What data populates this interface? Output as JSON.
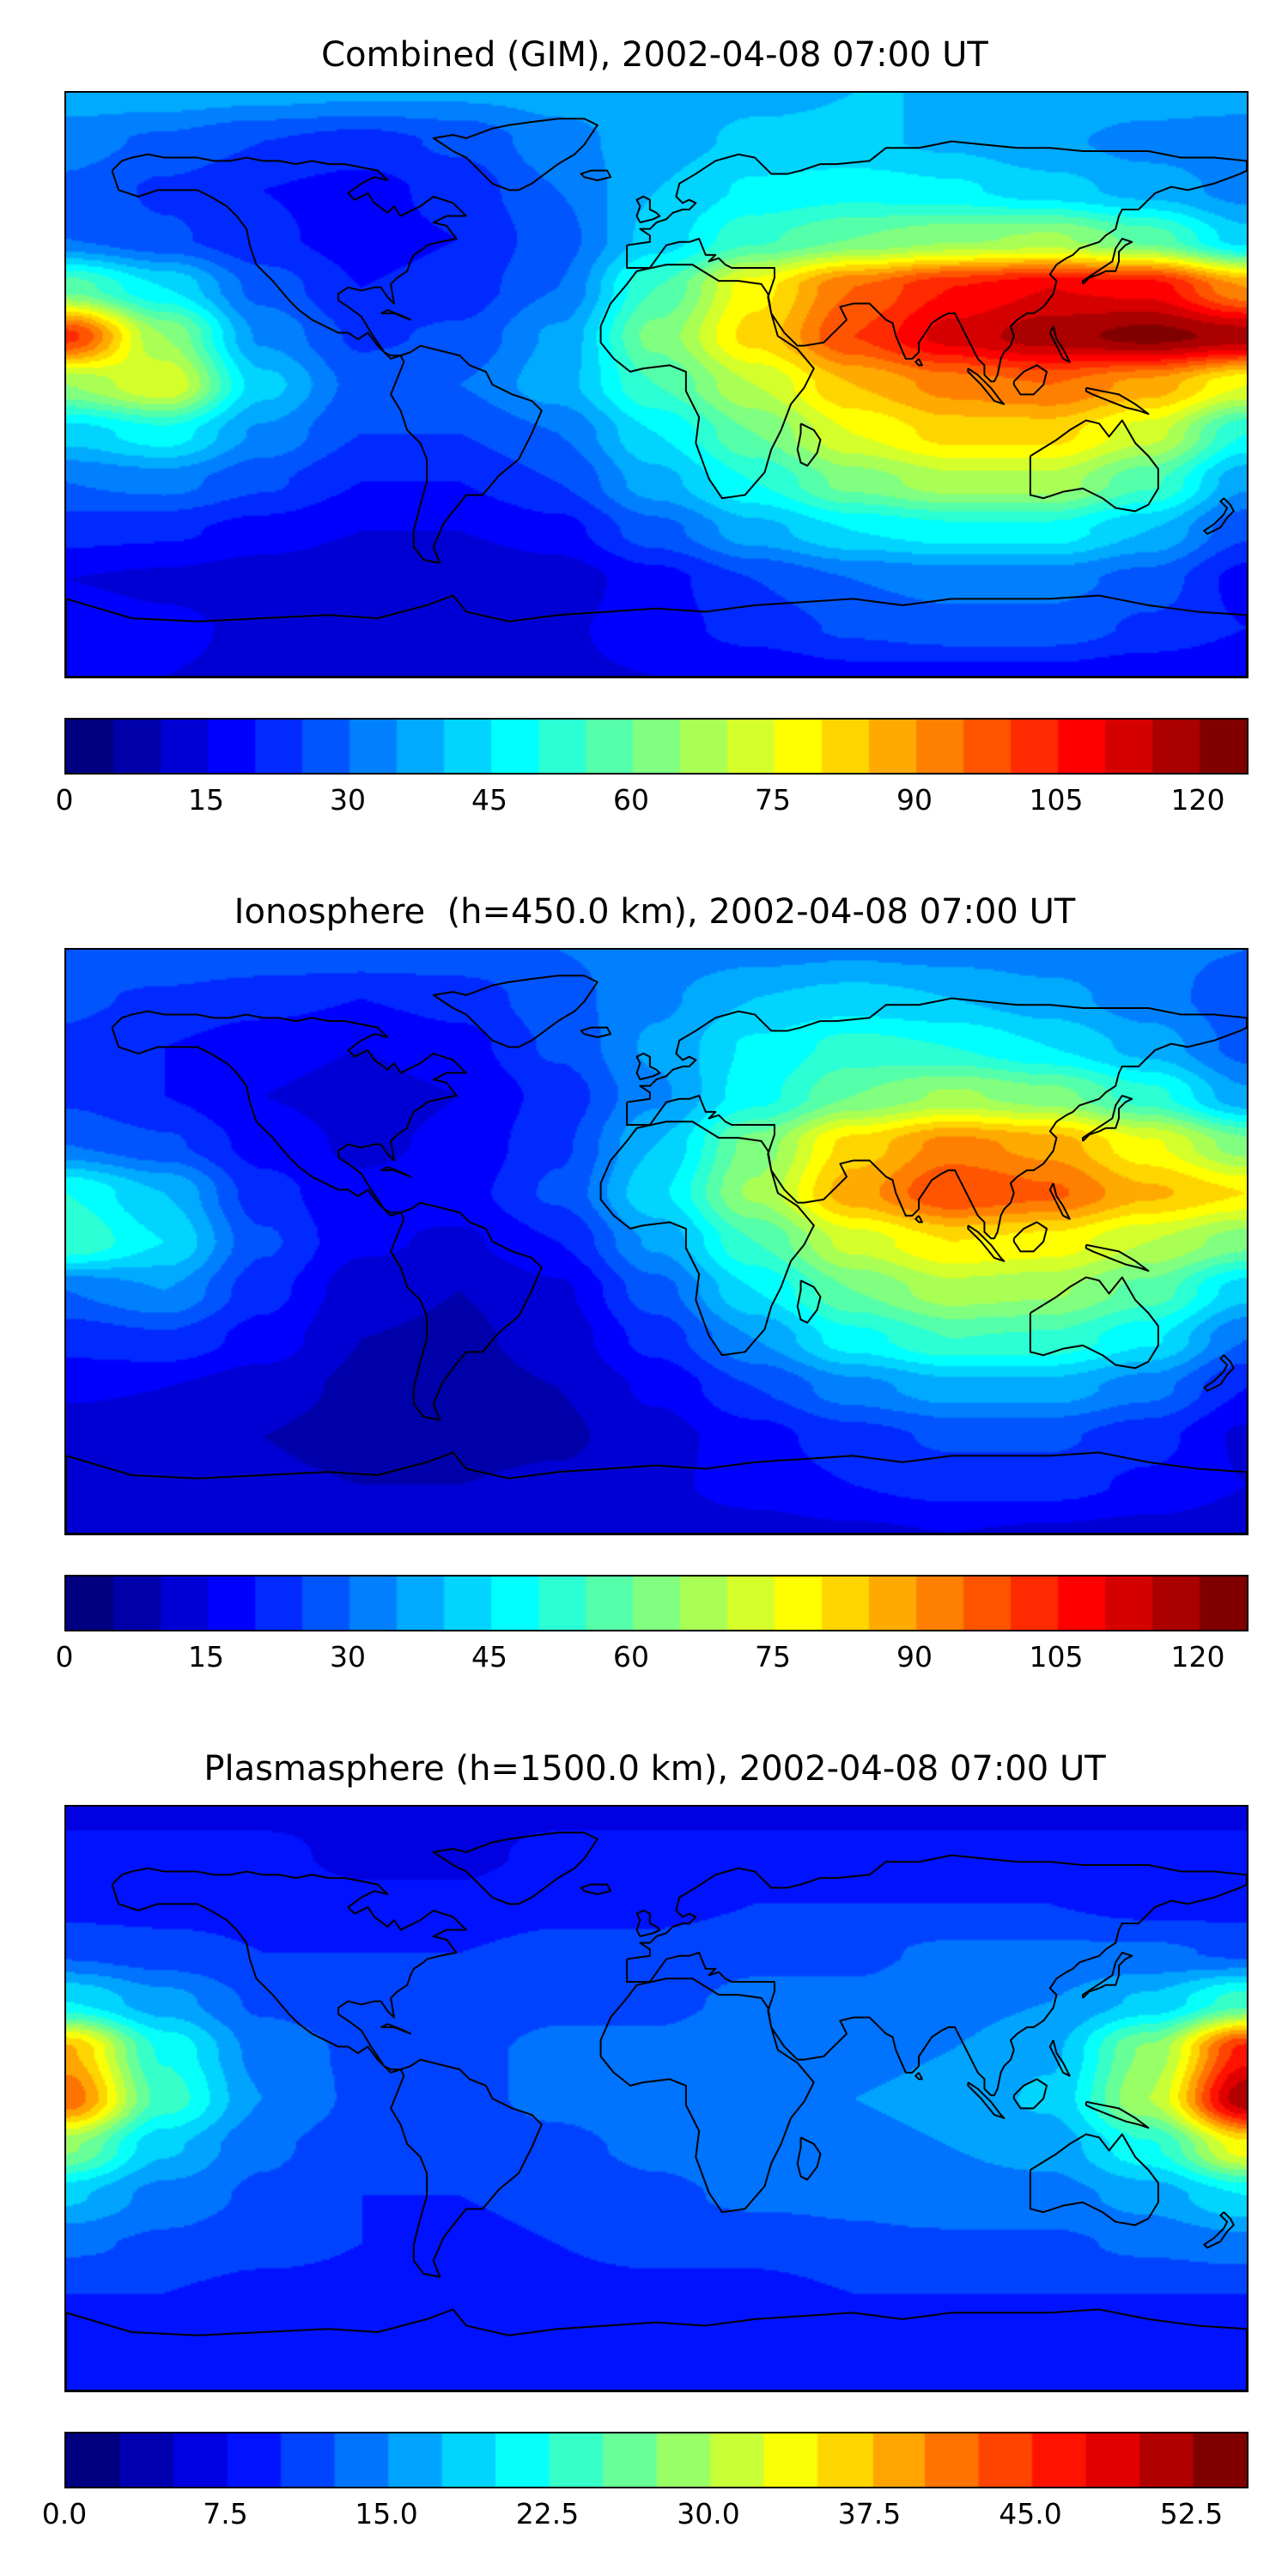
{
  "figure": {
    "background": "#ffffff",
    "text_color": "#000000"
  },
  "chart_data": [
    {
      "type": "heatmap",
      "title": "Combined (GIM), 2002-04-08 07:00 UT",
      "colormap": "jet",
      "projection": "equirectangular",
      "grid": false,
      "legend": "horizontal colorbar below map",
      "vmin": 0,
      "vmax": 125,
      "level_step": 5,
      "colorbar_ticks": [
        "0",
        "15",
        "30",
        "45",
        "60",
        "75",
        "90",
        "105",
        "120"
      ],
      "colorbar_tick_values": [
        0,
        15,
        30,
        45,
        60,
        75,
        90,
        105,
        120
      ],
      "lon": [
        -180,
        -150,
        -120,
        -90,
        -60,
        -30,
        0,
        30,
        60,
        90,
        120,
        150,
        180
      ],
      "lat": [
        90,
        75,
        60,
        45,
        30,
        15,
        0,
        -15,
        -30,
        -45,
        -60,
        -75,
        -90
      ],
      "values": [
        [
          38,
          38,
          37,
          36,
          36,
          37,
          38,
          39,
          40,
          40,
          39,
          38,
          38
        ],
        [
          32,
          29,
          25,
          23,
          26,
          33,
          38,
          41,
          41,
          39,
          36,
          33,
          31
        ],
        [
          29,
          24,
          20,
          18,
          22,
          30,
          40,
          46,
          48,
          46,
          42,
          38,
          33
        ],
        [
          30,
          26,
          21,
          18,
          20,
          28,
          42,
          54,
          60,
          64,
          66,
          58,
          42
        ],
        [
          58,
          45,
          28,
          20,
          22,
          30,
          55,
          78,
          95,
          105,
          110,
          108,
          90
        ],
        [
          102,
          65,
          34,
          24,
          26,
          36,
          62,
          82,
          100,
          112,
          118,
          122,
          118
        ],
        [
          65,
          75,
          42,
          28,
          30,
          38,
          55,
          70,
          85,
          92,
          95,
          88,
          75
        ],
        [
          42,
          48,
          34,
          25,
          25,
          30,
          45,
          60,
          75,
          82,
          82,
          72,
          50
        ],
        [
          30,
          32,
          26,
          20,
          20,
          25,
          38,
          50,
          62,
          68,
          68,
          56,
          36
        ],
        [
          22,
          21,
          18,
          15,
          15,
          18,
          28,
          38,
          45,
          48,
          48,
          40,
          26
        ],
        [
          15,
          14,
          12,
          10,
          10,
          12,
          18,
          25,
          30,
          32,
          32,
          28,
          18
        ],
        [
          18,
          16,
          14,
          12,
          12,
          14,
          18,
          22,
          26,
          28,
          28,
          24,
          20
        ],
        [
          15,
          15,
          14,
          14,
          14,
          14,
          15,
          16,
          18,
          18,
          18,
          16,
          15
        ]
      ]
    },
    {
      "type": "heatmap",
      "title": "Ionosphere  (h=450.0 km), 2002-04-08 07:00 UT",
      "colormap": "jet",
      "projection": "equirectangular",
      "grid": false,
      "legend": "horizontal colorbar below map",
      "vmin": 0,
      "vmax": 125,
      "level_step": 5,
      "colorbar_ticks": [
        "0",
        "15",
        "30",
        "45",
        "60",
        "75",
        "90",
        "105",
        "120"
      ],
      "colorbar_tick_values": [
        0,
        15,
        30,
        45,
        60,
        75,
        90,
        105,
        120
      ],
      "lon": [
        -180,
        -150,
        -120,
        -90,
        -60,
        -30,
        0,
        30,
        60,
        90,
        120,
        150,
        180
      ],
      "lat": [
        90,
        75,
        60,
        45,
        30,
        15,
        0,
        -15,
        -30,
        -45,
        -60,
        -75,
        -90
      ],
      "values": [
        [
          30,
          30,
          29,
          29,
          29,
          30,
          32,
          33,
          34,
          33,
          32,
          31,
          30
        ],
        [
          26,
          24,
          22,
          20,
          22,
          28,
          34,
          40,
          42,
          40,
          37,
          32,
          27
        ],
        [
          24,
          20,
          17,
          15,
          18,
          26,
          36,
          46,
          52,
          50,
          45,
          38,
          28
        ],
        [
          24,
          20,
          15,
          13,
          15,
          22,
          34,
          48,
          60,
          66,
          62,
          52,
          36
        ],
        [
          30,
          26,
          18,
          14,
          16,
          24,
          40,
          62,
          82,
          92,
          88,
          76,
          62
        ],
        [
          50,
          40,
          22,
          16,
          18,
          26,
          44,
          66,
          88,
          100,
          96,
          86,
          80
        ],
        [
          55,
          45,
          26,
          16,
          14,
          20,
          36,
          55,
          72,
          80,
          78,
          70,
          62
        ],
        [
          30,
          35,
          22,
          12,
          10,
          14,
          28,
          45,
          60,
          68,
          66,
          58,
          42
        ],
        [
          22,
          24,
          18,
          10,
          9,
          12,
          22,
          35,
          48,
          55,
          54,
          46,
          30
        ],
        [
          16,
          15,
          12,
          9,
          8,
          10,
          16,
          25,
          33,
          38,
          38,
          32,
          20
        ],
        [
          12,
          11,
          10,
          8,
          8,
          9,
          13,
          18,
          23,
          26,
          26,
          22,
          14
        ],
        [
          14,
          13,
          11,
          10,
          10,
          11,
          14,
          17,
          20,
          22,
          22,
          19,
          15
        ],
        [
          12,
          12,
          11,
          11,
          11,
          11,
          12,
          13,
          14,
          15,
          14,
          13,
          12
        ]
      ]
    },
    {
      "type": "heatmap",
      "title": "Plasmasphere (h=1500.0 km), 2002-04-08 07:00 UT",
      "colormap": "jet",
      "projection": "equirectangular",
      "grid": false,
      "legend": "horizontal colorbar below map",
      "vmin": 0,
      "vmax": 55,
      "level_step": 2.5,
      "colorbar_ticks": [
        "0.0",
        "7.5",
        "15.0",
        "22.5",
        "30.0",
        "37.5",
        "45.0",
        "52.5"
      ],
      "colorbar_tick_values": [
        0,
        7.5,
        15,
        22.5,
        30,
        37.5,
        45,
        52.5
      ],
      "lon": [
        -180,
        -150,
        -120,
        -90,
        -60,
        -30,
        0,
        30,
        60,
        90,
        120,
        150,
        180
      ],
      "lat": [
        90,
        75,
        60,
        45,
        30,
        15,
        0,
        -15,
        -30,
        -45,
        -60,
        -75,
        -90
      ],
      "values": [
        [
          7,
          7,
          7,
          7,
          7,
          7,
          7,
          7,
          7,
          7,
          7,
          7,
          7
        ],
        [
          8,
          8,
          8,
          7,
          7,
          8,
          8,
          8,
          8,
          8,
          8,
          8,
          8
        ],
        [
          9,
          9,
          9,
          8,
          8,
          9,
          9,
          10,
          10,
          10,
          10,
          9,
          9
        ],
        [
          12,
          11,
          10,
          10,
          10,
          11,
          11,
          12,
          12,
          13,
          13,
          13,
          12
        ],
        [
          20,
          16,
          12,
          11,
          11,
          12,
          12,
          13,
          13,
          14,
          15,
          18,
          24
        ],
        [
          38,
          22,
          14,
          12,
          12,
          13,
          13,
          14,
          14,
          15,
          17,
          28,
          46
        ],
        [
          42,
          24,
          15,
          12,
          12,
          13,
          14,
          14,
          15,
          16,
          18,
          30,
          52
        ],
        [
          28,
          18,
          13,
          11,
          11,
          12,
          13,
          14,
          14,
          15,
          16,
          22,
          34
        ],
        [
          18,
          14,
          12,
          10,
          10,
          11,
          12,
          13,
          13,
          14,
          14,
          16,
          20
        ],
        [
          13,
          12,
          11,
          10,
          9,
          10,
          11,
          11,
          12,
          12,
          12,
          13,
          14
        ],
        [
          10,
          10,
          9,
          9,
          8,
          9,
          9,
          9,
          10,
          10,
          10,
          10,
          10
        ],
        [
          9,
          9,
          9,
          8,
          8,
          8,
          9,
          9,
          9,
          9,
          9,
          9,
          9
        ],
        [
          9,
          9,
          9,
          9,
          9,
          9,
          9,
          9,
          9,
          9,
          9,
          9,
          9
        ]
      ]
    }
  ]
}
